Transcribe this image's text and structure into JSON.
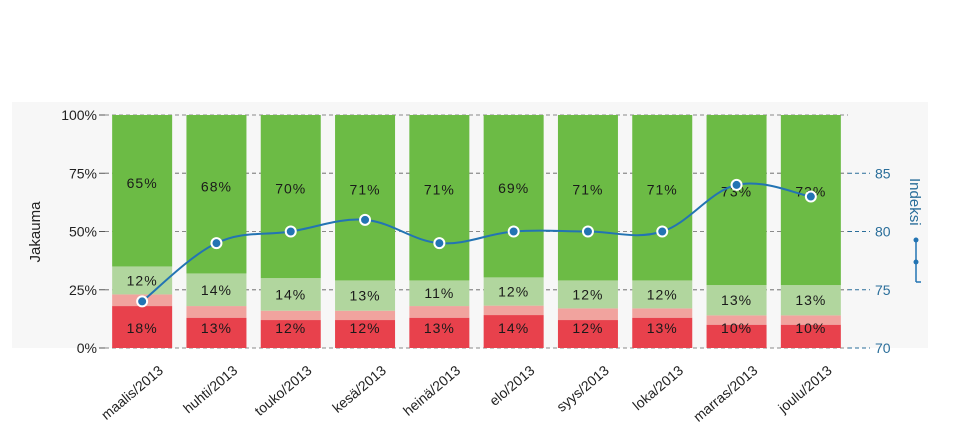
{
  "chart_data": {
    "type": "bar",
    "stacked": true,
    "percent_stacked": true,
    "categories": [
      "maalis/2013",
      "huhti/2013",
      "touko/2013",
      "kesä/2013",
      "heinä/2013",
      "elo/2013",
      "syys/2013",
      "loka/2013",
      "marras/2013",
      "joulu/2013"
    ],
    "series": [
      {
        "values": [
          18,
          13,
          12,
          12,
          13,
          14,
          12,
          13,
          10,
          10
        ],
        "labels": [
          "18%",
          "13%",
          "12%",
          "12%",
          "13%",
          "14%",
          "12%",
          "13%",
          "10%",
          "10%"
        ],
        "color": "#e8414c"
      },
      {
        "values": [
          5,
          5,
          4,
          4,
          5,
          4,
          5,
          4,
          4,
          4
        ],
        "color": "#f1a39e"
      },
      {
        "values": [
          12,
          14,
          14,
          13,
          11,
          12,
          12,
          12,
          13,
          13
        ],
        "labels": [
          "12%",
          "14%",
          "14%",
          "13%",
          "11%",
          "12%",
          "12%",
          "12%",
          "13%",
          "13%"
        ],
        "color": "#b1d69e"
      },
      {
        "values": [
          65,
          68,
          70,
          71,
          71,
          69,
          71,
          71,
          73,
          73
        ],
        "labels": [
          "65%",
          "68%",
          "70%",
          "71%",
          "71%",
          "69%",
          "71%",
          "71%",
          "73%",
          "73%"
        ],
        "color": "#6cbb45"
      }
    ],
    "line": {
      "values": [
        74,
        79,
        80,
        81,
        79,
        80,
        80,
        80,
        84,
        83
      ],
      "color": "#2374b3",
      "axis": "right"
    },
    "ylabel": "Jakauma",
    "yticks": [
      "0%",
      "25%",
      "50%",
      "75%",
      "100%"
    ],
    "ylim": [
      0,
      100
    ],
    "y2label": "Indeksi",
    "y2ticks": [
      "70",
      "75",
      "80",
      "85"
    ],
    "y2lim": [
      70,
      90
    ],
    "grid": "dashed",
    "background": "#f7f7f7"
  }
}
